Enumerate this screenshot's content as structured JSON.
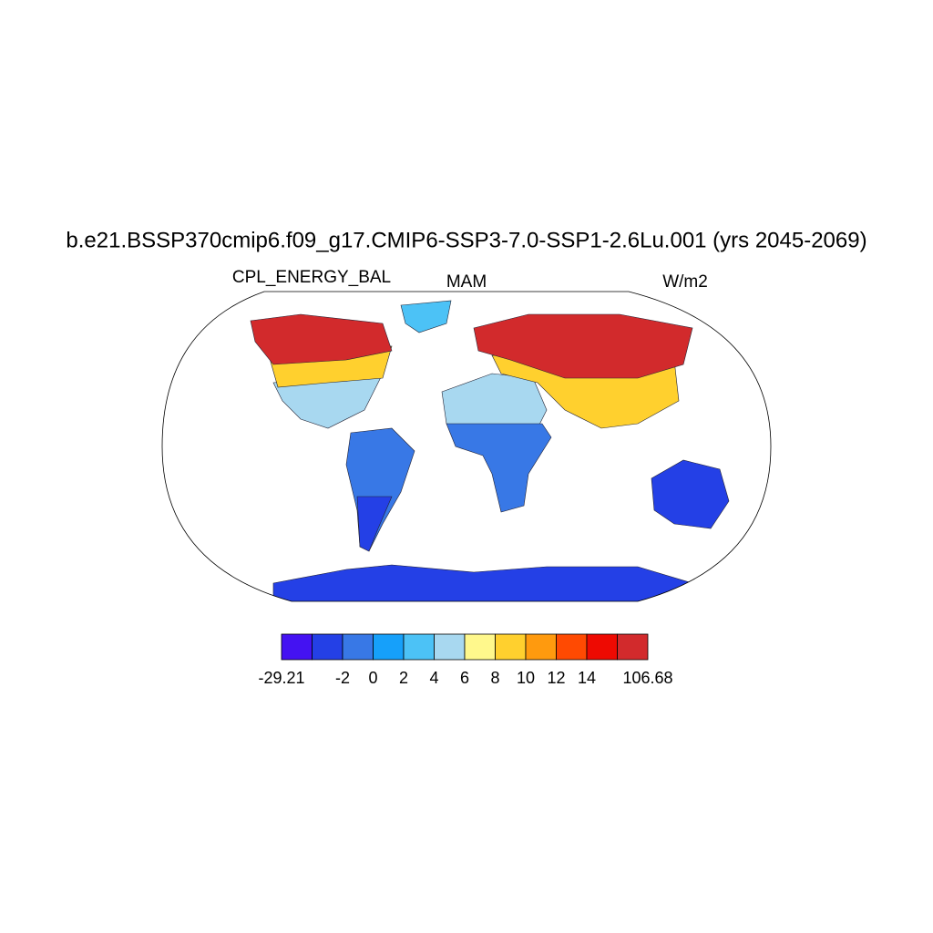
{
  "chart_data": {
    "type": "map",
    "title": "b.e21.BSSP370cmip6.f09_g17.CMIP6-SSP3-7.0-SSP1-2.6Lu.001 (yrs 2045-2069)",
    "left_label": "CPL_ENERGY_BAL",
    "center_label": "MAM",
    "right_label": "W/m2",
    "colorbar": {
      "boundaries": [
        -29.21,
        null,
        -2,
        0,
        2,
        4,
        6,
        8,
        10,
        12,
        14,
        null,
        106.68
      ],
      "colors": [
        "#4412f2",
        "#2440e6",
        "#3878e6",
        "#16a0fa",
        "#4cc2f6",
        "#a8d8f0",
        "#fff88c",
        "#ffd02e",
        "#ff9a0e",
        "#ff4a02",
        "#ee0a02",
        "#d22a2c"
      ]
    }
  }
}
